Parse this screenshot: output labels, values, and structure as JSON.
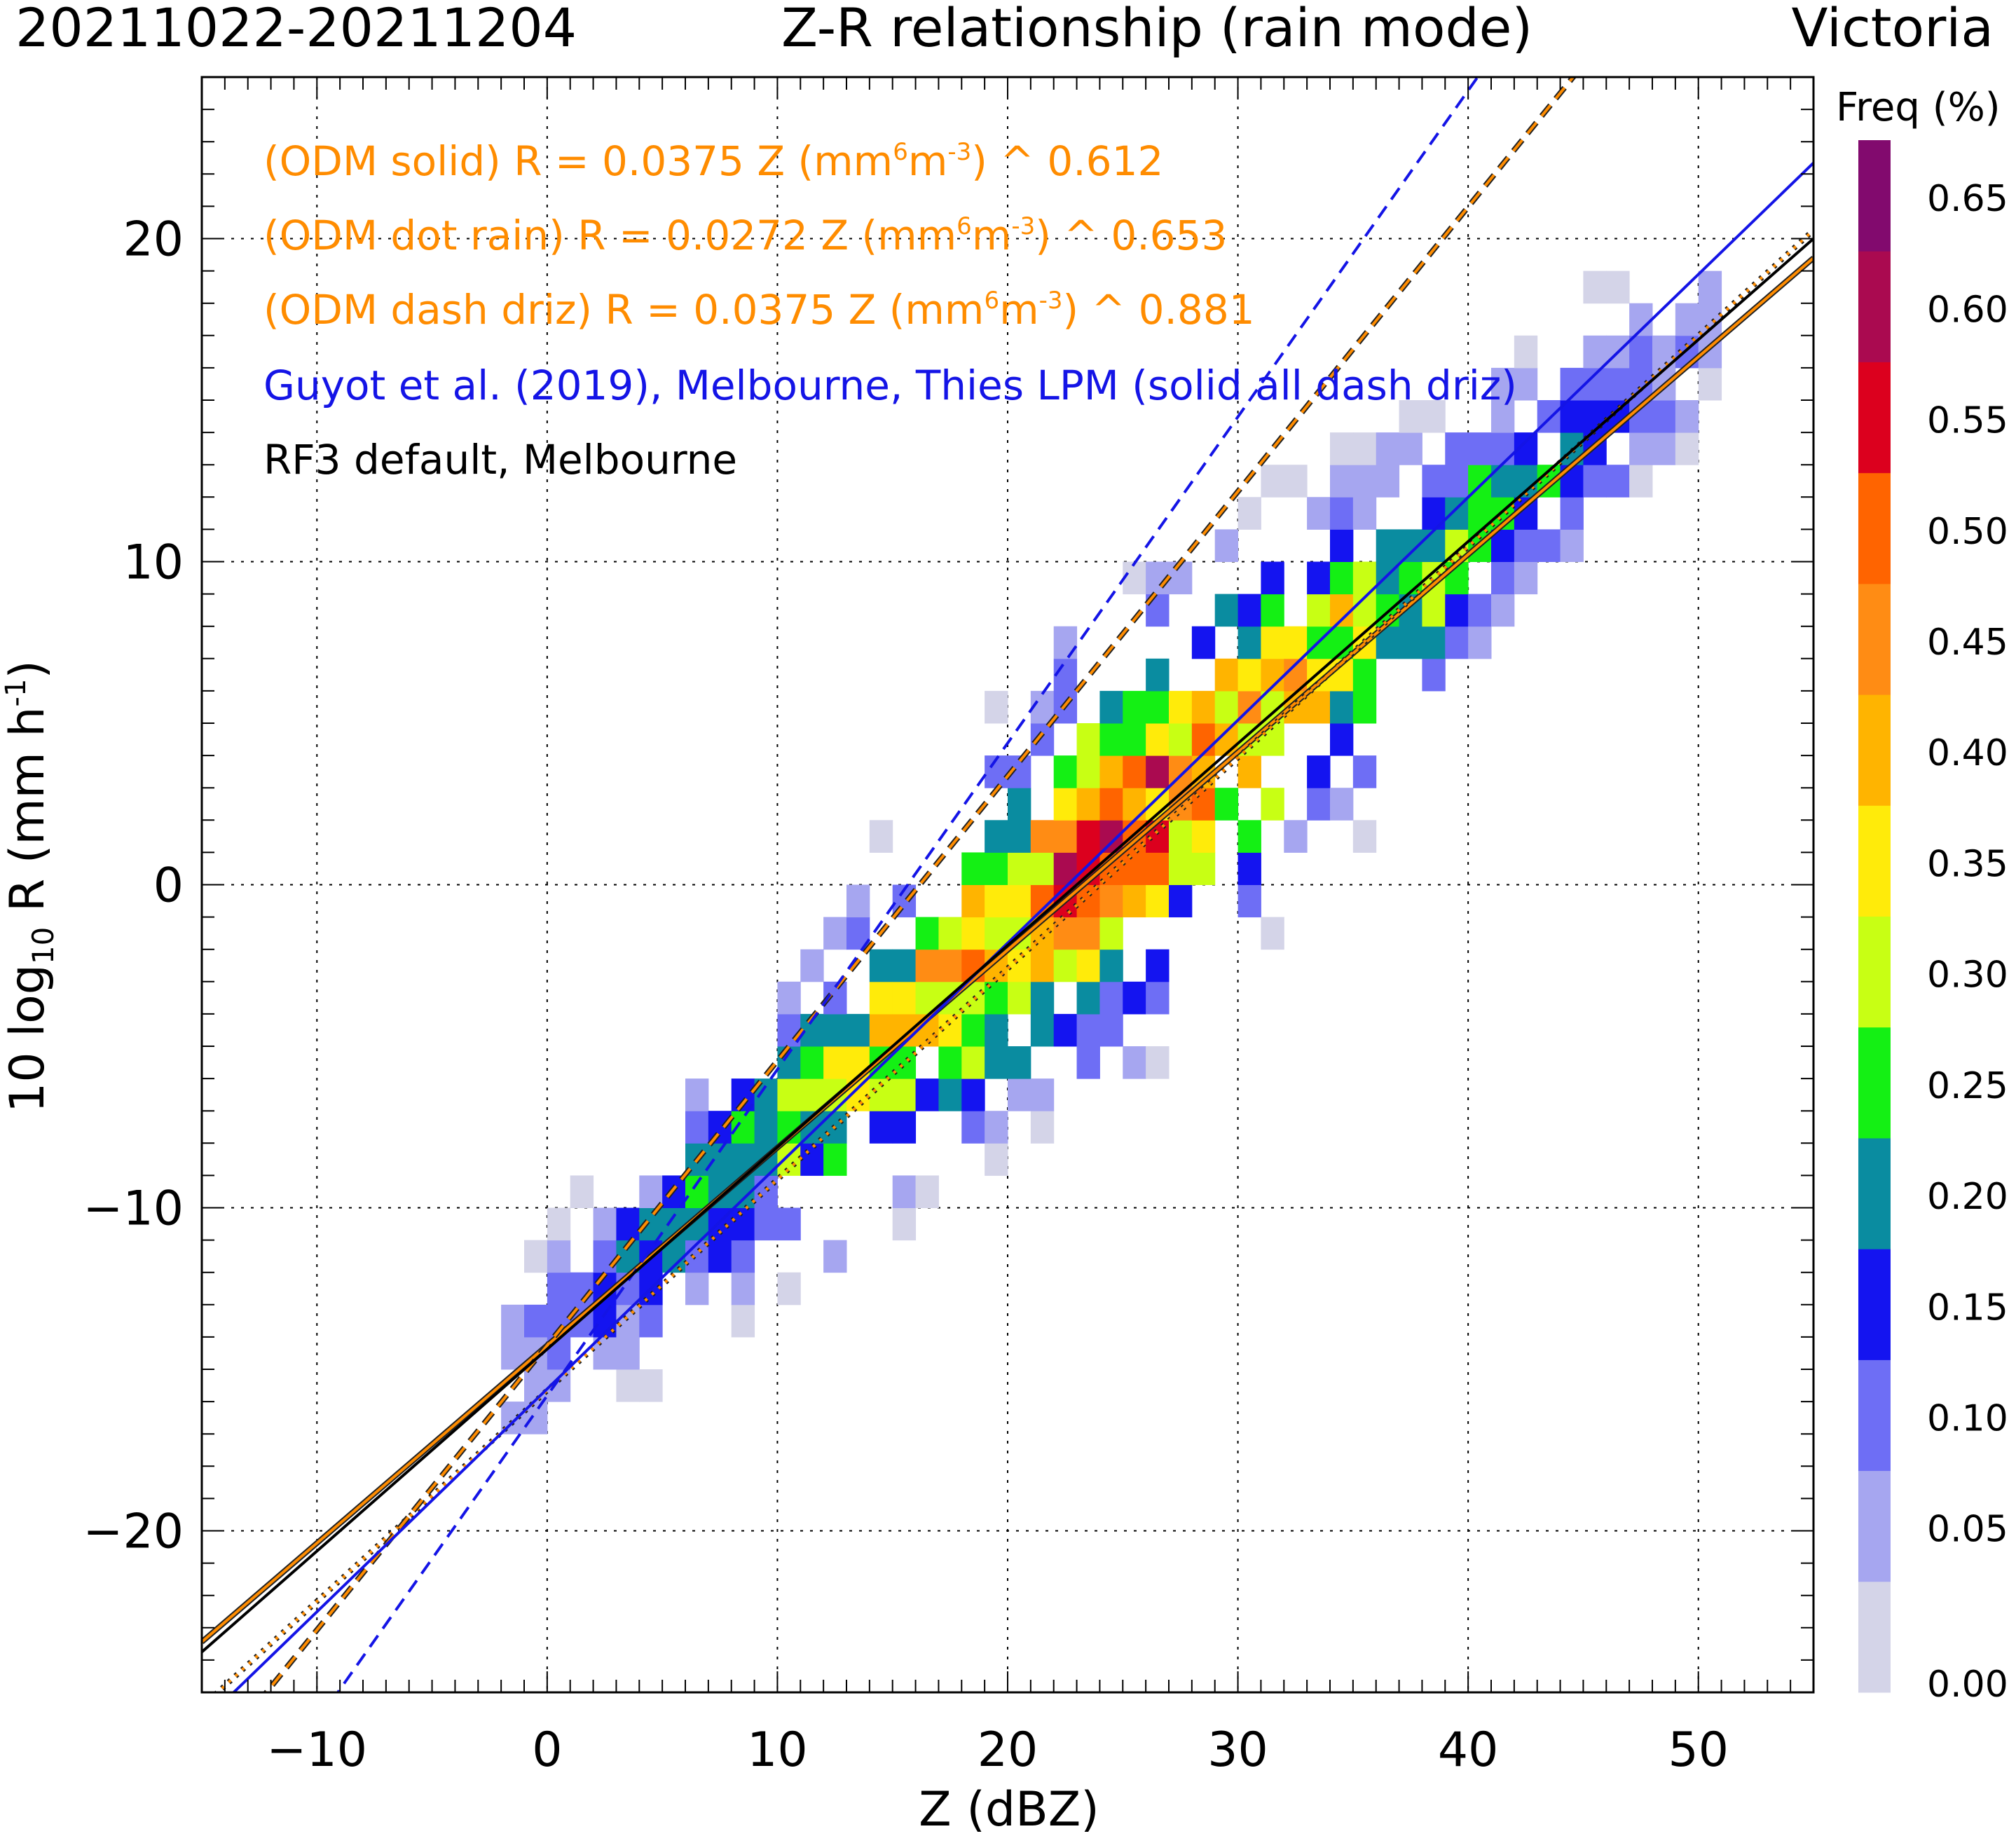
{
  "title": {
    "dates": "20211022-20211204",
    "main": "Z-R relationship (rain mode)",
    "site": "Victoria"
  },
  "chart_data": {
    "type": "heatmap",
    "xlabel": "Z (dBZ)",
    "ylabel_prefix": "10 log",
    "ylabel_sub": "10",
    "ylabel_suffix": " R (mm h",
    "ylabel_sup": "-1",
    "ylabel_close": ")",
    "xlim": [
      -15,
      55
    ],
    "ylim": [
      -25,
      25
    ],
    "x_ticks": [
      -10,
      0,
      10,
      20,
      30,
      40,
      50
    ],
    "x_tick_labels": [
      "−10",
      "0",
      "10",
      "20",
      "30",
      "40",
      "50"
    ],
    "y_ticks": [
      -20,
      -10,
      0,
      10,
      20
    ],
    "y_tick_labels": [
      "−20",
      "−10",
      "0",
      "10",
      "20"
    ],
    "grid": true,
    "cell_width_dbz": 1,
    "cell_height_db": 1,
    "colorbar": {
      "title": "Freq (%)",
      "tick_labels": [
        "0.00",
        "0.05",
        "0.10",
        "0.15",
        "0.20",
        "0.25",
        "0.30",
        "0.35",
        "0.40",
        "0.45",
        "0.50",
        "0.55",
        "0.60",
        "0.65"
      ],
      "colors": [
        "#d4d4e8",
        "#a6a6f0",
        "#6e6ef5",
        "#1414f0",
        "#0a8ca0",
        "#14f014",
        "#c8ff14",
        "#ffeb0a",
        "#ffb400",
        "#ff8c14",
        "#ff6400",
        "#dc001e",
        "#aa0a50",
        "#820a6e"
      ]
    },
    "heatmap_bins": [],
    "lines": [
      {
        "name": "ODM solid",
        "color": "#ff8c00",
        "style": "solid",
        "a": 0.0375,
        "b": 0.612,
        "outlined": true
      },
      {
        "name": "ODM dot rain",
        "color": "#ff8c00",
        "style": "dot",
        "a": 0.0272,
        "b": 0.653,
        "outlined": true
      },
      {
        "name": "ODM dash driz",
        "color": "#ff8c00",
        "style": "dash",
        "a": 0.0375,
        "b": 0.881,
        "outlined": true
      },
      {
        "name": "Guyot solid",
        "color": "#1414e6",
        "style": "solid",
        "a": 0.0275,
        "b": 0.69,
        "outlined": false
      },
      {
        "name": "Guyot dash driz",
        "color": "#1414e6",
        "style": "dash",
        "a": 0.0262,
        "b": 1.01,
        "outlined": false
      },
      {
        "name": "RF3 default",
        "color": "#000000",
        "style": "solid",
        "a": 0.0365,
        "b": 0.625,
        "outlined": false
      }
    ],
    "annotations": [
      {
        "text": "(ODM solid)  R =  0.0375 Z (mm",
        "sup": "6",
        "mid": "m",
        "sup2": "-3",
        "tail": ") ^  0.612",
        "color": "#ff8c00"
      },
      {
        "text": "(ODM dot rain)  R =  0.0272 Z (mm",
        "sup": "6",
        "mid": "m",
        "sup2": "-3",
        "tail": ") ^  0.653",
        "color": "#ff8c00"
      },
      {
        "text": "(ODM dash driz)  R =  0.0375 Z (mm",
        "sup": "6",
        "mid": "m",
        "sup2": "-3",
        "tail": ") ^  0.881",
        "color": "#ff8c00"
      },
      {
        "text": "Guyot et al. (2019), Melbourne, Thies LPM (solid all dash driz)",
        "color": "#1414e6"
      },
      {
        "text": "RF3 default, Melbourne",
        "color": "#000000"
      }
    ]
  }
}
